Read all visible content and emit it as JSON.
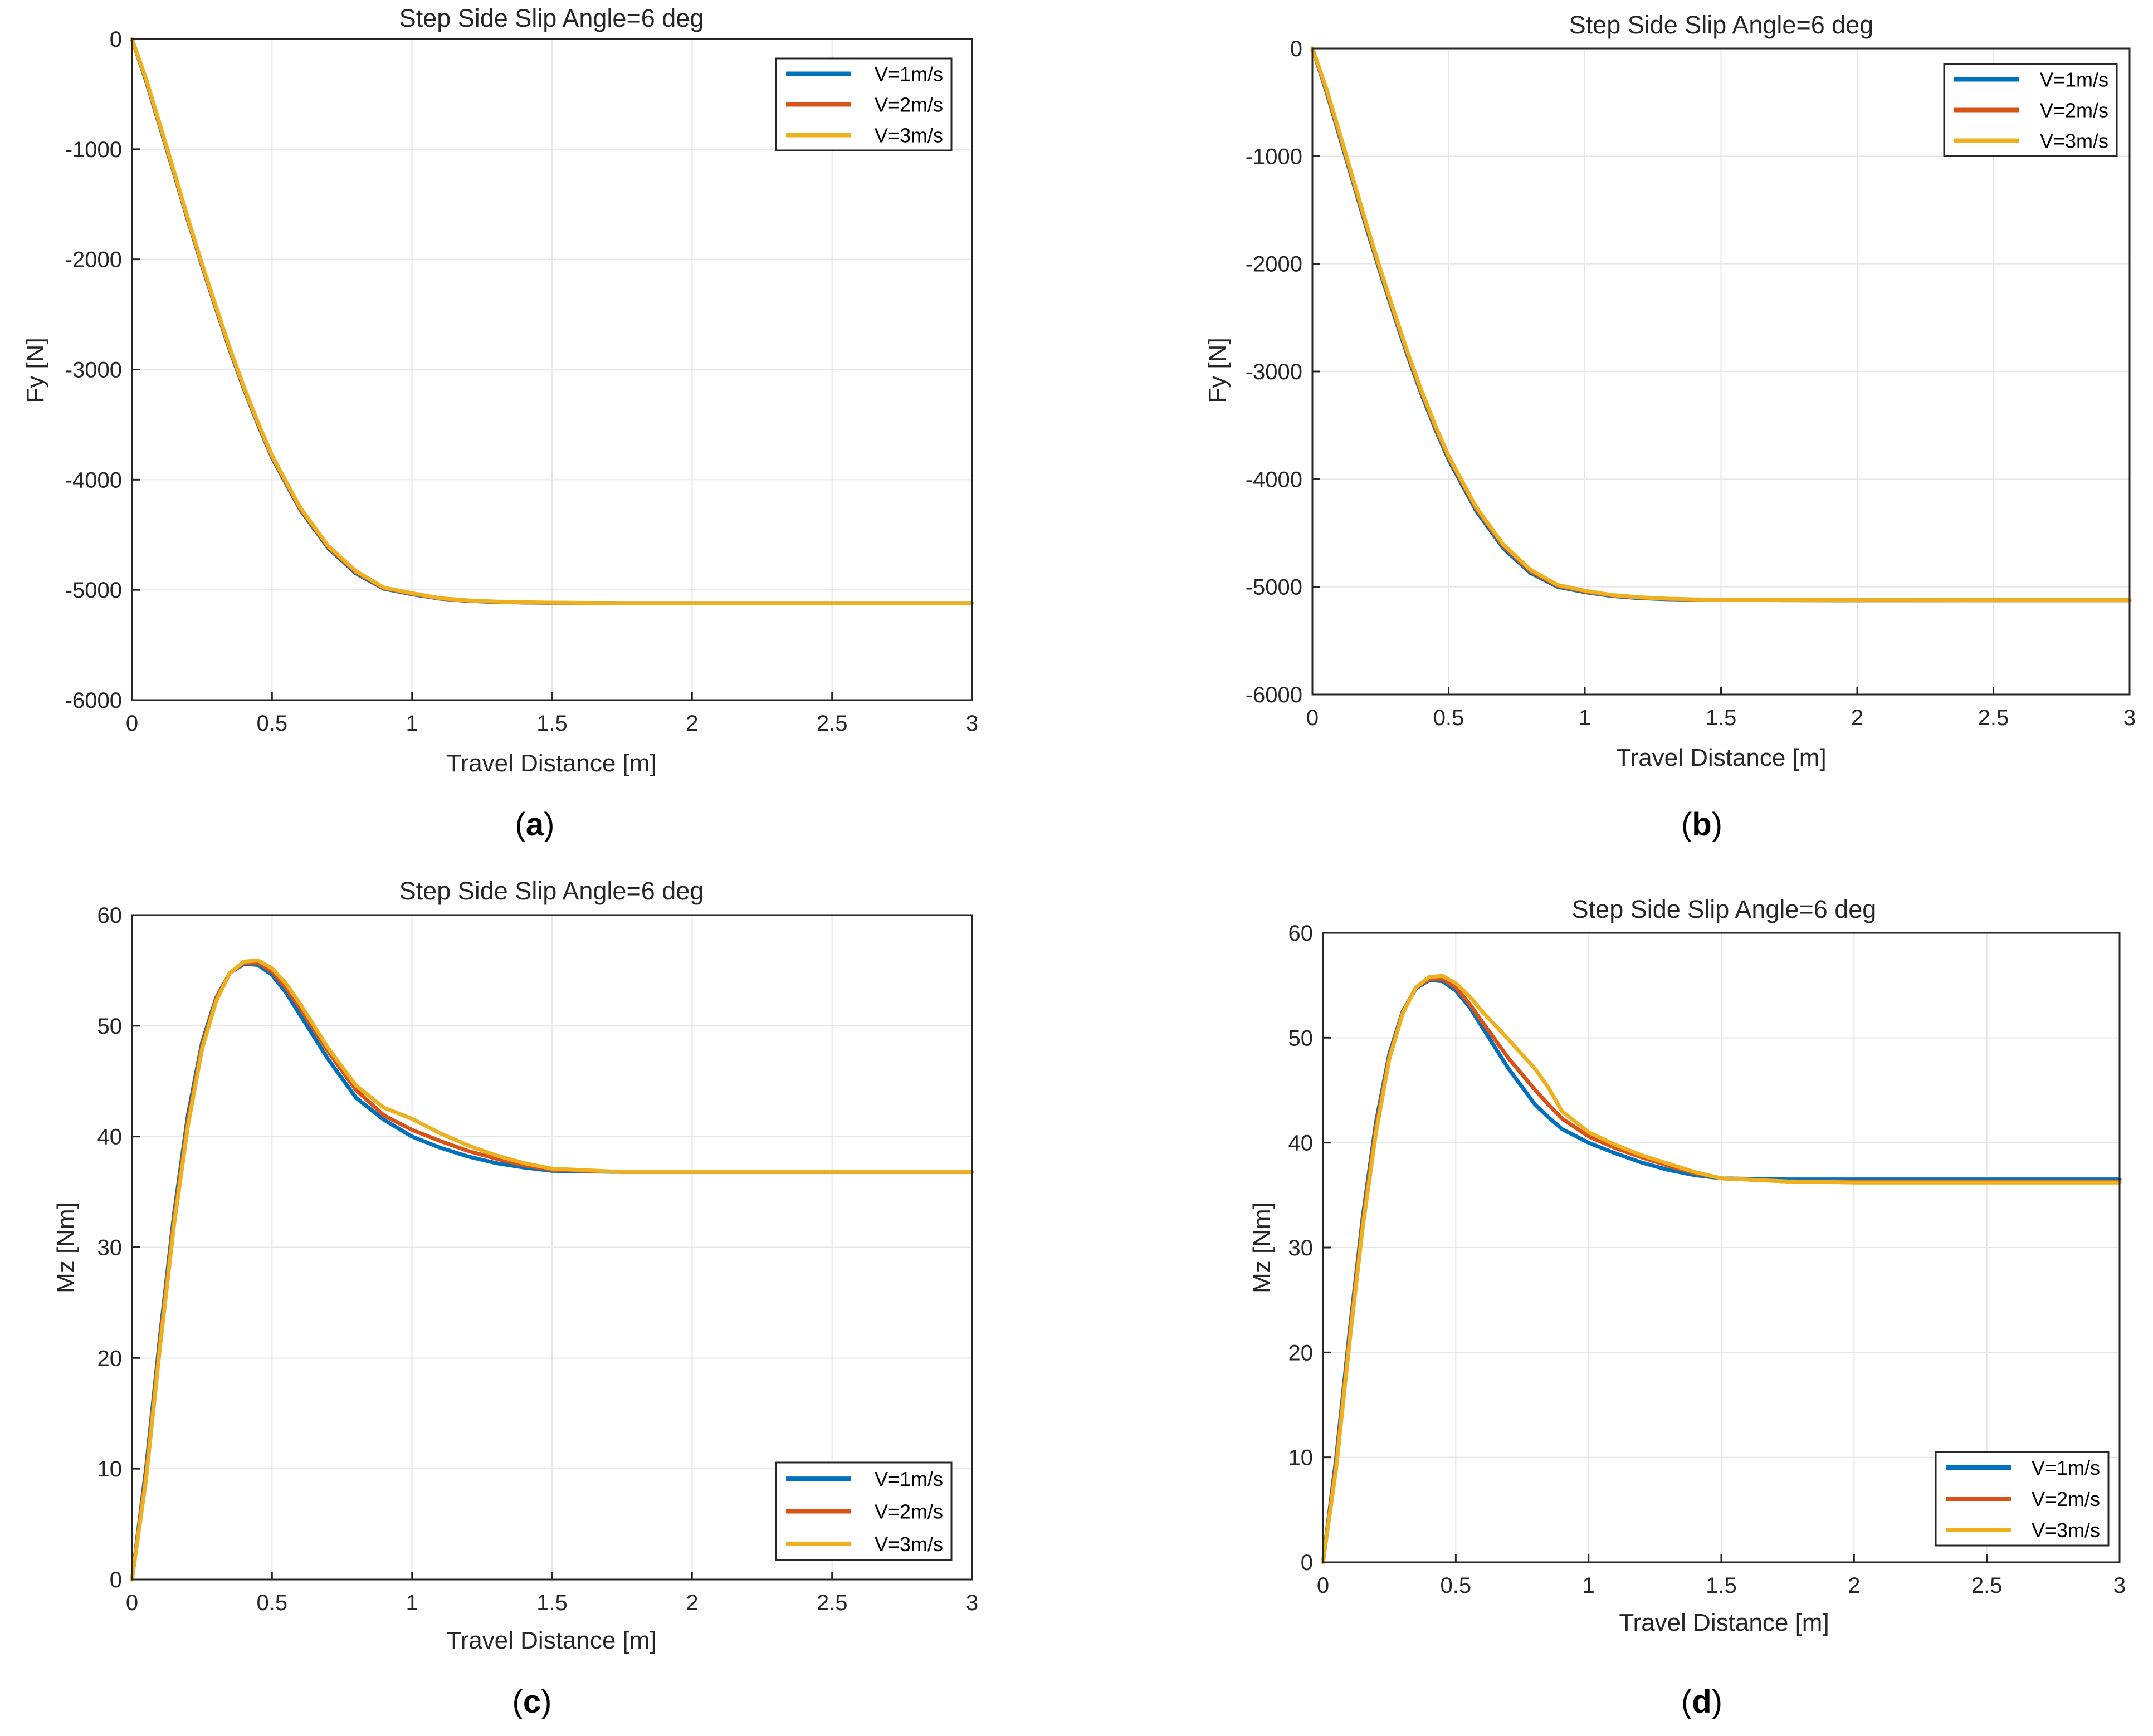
{
  "colors": {
    "series": [
      "#0072bd",
      "#d95319",
      "#edb120"
    ],
    "grid": "#e6e6e6",
    "axis": "#262626"
  },
  "captions": [
    {
      "open": "(",
      "letter": "a",
      "close": ")"
    },
    {
      "open": "(",
      "letter": "b",
      "close": ")"
    },
    {
      "open": "(",
      "letter": "c",
      "close": ")"
    },
    {
      "open": "(",
      "letter": "d",
      "close": ")"
    }
  ],
  "chart_data": [
    {
      "panel": "a",
      "type": "line",
      "title": "Step Side Slip Angle=6 deg",
      "xlabel": "Travel Distance [m]",
      "ylabel": "Fy [N]",
      "xlim": [
        0,
        3
      ],
      "ylim": [
        -6000,
        0
      ],
      "xticks": [
        0,
        0.5,
        1,
        1.5,
        2,
        2.5,
        3
      ],
      "xtick_labels": [
        "0",
        "0.5",
        "1",
        "1.5",
        "2",
        "2.5",
        "3"
      ],
      "yticks": [
        0,
        -1000,
        -2000,
        -3000,
        -4000,
        -5000,
        -6000
      ],
      "ytick_labels": [
        "0",
        "-1000",
        "-2000",
        "-3000",
        "-4000",
        "-5000",
        "-6000"
      ],
      "grid": true,
      "legend_position": "top-right",
      "x": [
        0,
        0.05,
        0.1,
        0.15,
        0.2,
        0.25,
        0.3,
        0.35,
        0.4,
        0.45,
        0.5,
        0.6,
        0.7,
        0.8,
        0.9,
        1.0,
        1.1,
        1.2,
        1.3,
        1.4,
        1.5,
        1.75,
        2.0,
        2.5,
        3.0
      ],
      "series": [
        {
          "name": "V=1m/s",
          "values": [
            0,
            -380,
            -800,
            -1220,
            -1650,
            -2060,
            -2450,
            -2830,
            -3180,
            -3500,
            -3800,
            -4270,
            -4620,
            -4850,
            -4990,
            -5040,
            -5080,
            -5100,
            -5110,
            -5115,
            -5118,
            -5120,
            -5120,
            -5120,
            -5120
          ]
        },
        {
          "name": "V=2m/s",
          "values": [
            0,
            -370,
            -790,
            -1210,
            -1640,
            -2050,
            -2440,
            -2820,
            -3170,
            -3490,
            -3790,
            -4260,
            -4610,
            -4840,
            -4985,
            -5035,
            -5078,
            -5098,
            -5108,
            -5114,
            -5117,
            -5120,
            -5120,
            -5120,
            -5120
          ]
        },
        {
          "name": "V=3m/s",
          "values": [
            0,
            -360,
            -780,
            -1200,
            -1630,
            -2040,
            -2430,
            -2810,
            -3160,
            -3480,
            -3780,
            -4250,
            -4600,
            -4830,
            -4980,
            -5030,
            -5075,
            -5095,
            -5106,
            -5112,
            -5116,
            -5120,
            -5120,
            -5120,
            -5120
          ]
        }
      ]
    },
    {
      "panel": "b",
      "type": "line",
      "title": "Step Side Slip Angle=6 deg",
      "xlabel": "Travel Distance [m]",
      "ylabel": "Fy [N]",
      "xlim": [
        0,
        3
      ],
      "ylim": [
        -6000,
        0
      ],
      "xticks": [
        0,
        0.5,
        1,
        1.5,
        2,
        2.5,
        3
      ],
      "xtick_labels": [
        "0",
        "0.5",
        "1",
        "1.5",
        "2",
        "2.5",
        "3"
      ],
      "yticks": [
        0,
        -1000,
        -2000,
        -3000,
        -4000,
        -5000,
        -6000
      ],
      "ytick_labels": [
        "0",
        "-1000",
        "-2000",
        "-3000",
        "-4000",
        "-5000",
        "-6000"
      ],
      "grid": true,
      "legend_position": "top-right",
      "x": [
        0,
        0.05,
        0.1,
        0.15,
        0.2,
        0.25,
        0.3,
        0.35,
        0.4,
        0.45,
        0.5,
        0.6,
        0.7,
        0.8,
        0.9,
        1.0,
        1.1,
        1.2,
        1.3,
        1.4,
        1.5,
        1.75,
        2.0,
        2.5,
        3.0
      ],
      "series": [
        {
          "name": "V=1m/s",
          "values": [
            0,
            -390,
            -820,
            -1250,
            -1680,
            -2090,
            -2480,
            -2860,
            -3210,
            -3530,
            -3820,
            -4290,
            -4640,
            -4870,
            -5000,
            -5050,
            -5085,
            -5105,
            -5115,
            -5120,
            -5122,
            -5124,
            -5125,
            -5125,
            -5125
          ]
        },
        {
          "name": "V=2m/s",
          "values": [
            0,
            -375,
            -800,
            -1230,
            -1660,
            -2070,
            -2460,
            -2840,
            -3190,
            -3510,
            -3800,
            -4270,
            -4620,
            -4855,
            -4990,
            -5043,
            -5080,
            -5100,
            -5112,
            -5118,
            -5121,
            -5124,
            -5125,
            -5125,
            -5125
          ]
        },
        {
          "name": "V=3m/s",
          "values": [
            0,
            -360,
            -785,
            -1215,
            -1645,
            -2055,
            -2445,
            -2825,
            -3175,
            -3495,
            -3785,
            -4255,
            -4605,
            -4840,
            -4982,
            -5036,
            -5076,
            -5097,
            -5110,
            -5116,
            -5120,
            -5123,
            -5124,
            -5125,
            -5125
          ]
        }
      ]
    },
    {
      "panel": "c",
      "type": "line",
      "title": "Step Side Slip Angle=6 deg",
      "xlabel": "Travel Distance [m]",
      "ylabel": "Mz [Nm]",
      "xlim": [
        0,
        3
      ],
      "ylim": [
        0,
        60
      ],
      "xticks": [
        0,
        0.5,
        1,
        1.5,
        2,
        2.5,
        3
      ],
      "xtick_labels": [
        "0",
        "0.5",
        "1",
        "1.5",
        "2",
        "2.5",
        "3"
      ],
      "yticks": [
        60,
        50,
        40,
        30,
        20,
        10,
        0
      ],
      "ytick_labels": [
        "60",
        "50",
        "40",
        "30",
        "20",
        "10",
        "0"
      ],
      "grid": true,
      "legend_position": "bottom-right",
      "x": [
        0,
        0.05,
        0.1,
        0.15,
        0.2,
        0.25,
        0.3,
        0.35,
        0.4,
        0.45,
        0.5,
        0.55,
        0.6,
        0.7,
        0.8,
        0.9,
        1.0,
        1.1,
        1.2,
        1.3,
        1.4,
        1.5,
        1.75,
        2.0,
        2.5,
        3.0
      ],
      "series": [
        {
          "name": "V=1m/s",
          "values": [
            0,
            10,
            22,
            33,
            42,
            48.5,
            52.5,
            54.8,
            55.6,
            55.5,
            54.6,
            53,
            51,
            47,
            43.5,
            41.5,
            40,
            39,
            38.2,
            37.6,
            37.2,
            36.9,
            36.8,
            36.8,
            36.8,
            36.8
          ]
        },
        {
          "name": "V=2m/s",
          "values": [
            0,
            9.5,
            21.5,
            32.5,
            41.5,
            48.2,
            52.4,
            54.8,
            55.7,
            55.7,
            54.9,
            53.4,
            51.6,
            47.7,
            44.2,
            41.9,
            40.6,
            39.6,
            38.7,
            38,
            37.4,
            37,
            36.8,
            36.8,
            36.8,
            36.8
          ]
        },
        {
          "name": "V=3m/s",
          "values": [
            0,
            9,
            21,
            32,
            41,
            47.9,
            52.2,
            54.8,
            55.8,
            55.9,
            55.2,
            53.8,
            52,
            48,
            44.6,
            42.6,
            41.6,
            40.3,
            39.2,
            38.3,
            37.6,
            37.1,
            36.8,
            36.8,
            36.8,
            36.8
          ]
        }
      ]
    },
    {
      "panel": "d",
      "type": "line",
      "title": "Step Side Slip Angle=6 deg",
      "xlabel": "Travel Distance [m]",
      "ylabel": "Mz [Nm]",
      "xlim": [
        0,
        3
      ],
      "ylim": [
        0,
        60
      ],
      "xticks": [
        0,
        0.5,
        1,
        1.5,
        2,
        2.5,
        3
      ],
      "xtick_labels": [
        "0",
        "0.5",
        "1",
        "1.5",
        "2",
        "2.5",
        "3"
      ],
      "yticks": [
        60,
        50,
        40,
        30,
        20,
        10,
        0
      ],
      "ytick_labels": [
        "60",
        "50",
        "40",
        "30",
        "20",
        "10",
        "0"
      ],
      "grid": true,
      "legend_position": "bottom-right",
      "x": [
        0,
        0.05,
        0.1,
        0.15,
        0.2,
        0.25,
        0.3,
        0.35,
        0.4,
        0.45,
        0.5,
        0.55,
        0.6,
        0.7,
        0.8,
        0.85,
        0.9,
        1.0,
        1.1,
        1.2,
        1.3,
        1.4,
        1.5,
        1.75,
        2.0,
        2.5,
        3.0
      ],
      "series": [
        {
          "name": "V=1m/s",
          "values": [
            0,
            10,
            22,
            33,
            42,
            48.5,
            52.5,
            54.7,
            55.5,
            55.4,
            54.5,
            53,
            51,
            47,
            43.6,
            42.4,
            41.3,
            40,
            39,
            38.1,
            37.4,
            36.9,
            36.6,
            36.5,
            36.5,
            36.5,
            36.5
          ]
        },
        {
          "name": "V=2m/s",
          "values": [
            0,
            9.5,
            21.5,
            32.5,
            41.5,
            48.2,
            52.4,
            54.8,
            55.6,
            55.6,
            54.8,
            53.3,
            51.5,
            48,
            45,
            43.6,
            42.3,
            40.6,
            39.5,
            38.6,
            37.8,
            37.1,
            36.6,
            36.3,
            36.3,
            36.3,
            36.3
          ]
        },
        {
          "name": "V=3m/s",
          "values": [
            0,
            9,
            21,
            32,
            41,
            48,
            52.3,
            54.8,
            55.8,
            55.9,
            55.2,
            54,
            52.5,
            49.8,
            47,
            45.2,
            43,
            41,
            39.8,
            38.8,
            38,
            37.2,
            36.6,
            36.3,
            36.2,
            36.2,
            36.2
          ]
        }
      ]
    }
  ]
}
